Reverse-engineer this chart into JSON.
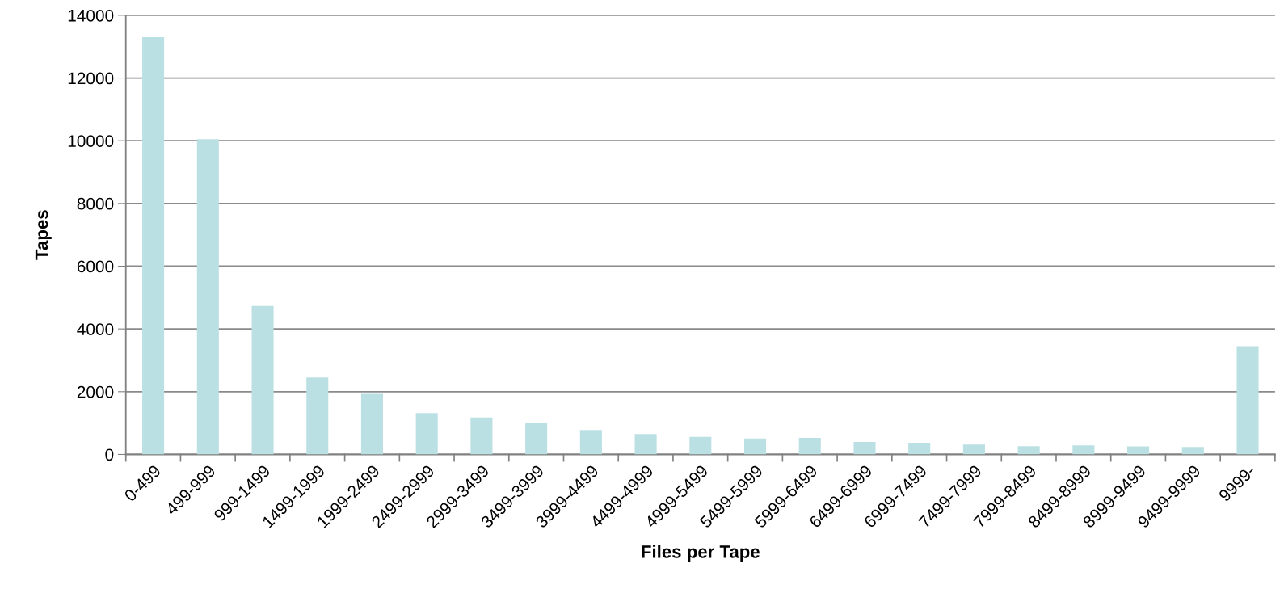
{
  "chart_data": {
    "type": "bar",
    "xlabel": "Files per Tape",
    "ylabel": "Tapes",
    "categories": [
      "0-499",
      "499-999",
      "999-1499",
      "1499-1999",
      "1999-2499",
      "2499-2999",
      "2999-3499",
      "3499-3999",
      "3999-4499",
      "4499-4999",
      "4999-5499",
      "5499-5999",
      "5999-6499",
      "6499-6999",
      "6999-7499",
      "7499-7999",
      "7999-8499",
      "8499-8999",
      "8999-9499",
      "9499-9999",
      "9999-"
    ],
    "values": [
      13300,
      10050,
      4730,
      2450,
      1930,
      1320,
      1180,
      990,
      780,
      650,
      560,
      510,
      530,
      400,
      375,
      315,
      265,
      290,
      255,
      240,
      3450
    ],
    "color": "#bbe0e3",
    "ylim": [
      0,
      14000
    ],
    "yticks": [
      0,
      2000,
      4000,
      6000,
      8000,
      10000,
      12000,
      14000
    ],
    "grid": "y",
    "legend": false
  }
}
